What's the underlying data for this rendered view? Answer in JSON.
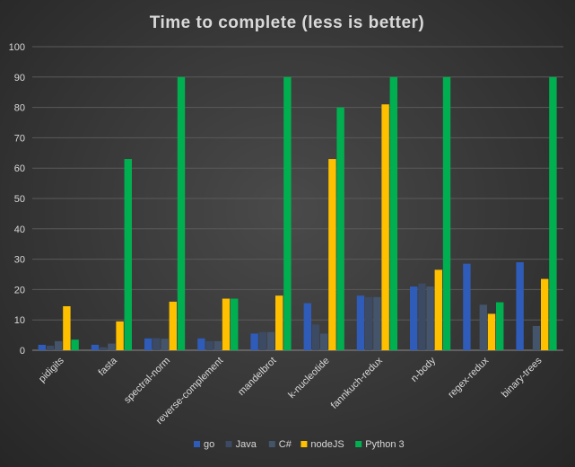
{
  "chart_data": {
    "type": "bar",
    "title": "Time to complete (less is better)",
    "xlabel": "",
    "ylabel": "",
    "ylim": [
      0,
      100
    ],
    "yticks": [
      0,
      10,
      20,
      30,
      40,
      50,
      60,
      70,
      80,
      90,
      100
    ],
    "grid": true,
    "legend_position": "bottom",
    "categories": [
      "pidigits",
      "fasta",
      "spectral-norm",
      "reverse-complement",
      "mandelbrot",
      "k-nucleotide",
      "fannkuch-redux",
      "n-body",
      "regex-redux",
      "binary-trees"
    ],
    "series": [
      {
        "name": "go",
        "color": "#2e5cb8",
        "values": [
          1.8,
          1.8,
          3.9,
          3.9,
          5.5,
          15.5,
          18.0,
          21.0,
          28.5,
          29.0
        ]
      },
      {
        "name": "Java",
        "color": "#3d4a63",
        "values": [
          1.5,
          1.0,
          4.0,
          3.0,
          6.0,
          8.5,
          17.5,
          22.0,
          0,
          0
        ]
      },
      {
        "name": "C#",
        "color": "#44546a",
        "values": [
          3.0,
          2.2,
          3.8,
          3.0,
          6.0,
          5.5,
          17.5,
          21.0,
          15.0,
          8.0
        ]
      },
      {
        "name": "nodeJS",
        "color": "#ffc000",
        "values": [
          14.5,
          9.5,
          16.0,
          17.0,
          18.0,
          63.0,
          81.0,
          26.5,
          12.0,
          23.5
        ]
      },
      {
        "name": "Python 3",
        "color": "#00b050",
        "values": [
          3.5,
          63.0,
          90.0,
          17.0,
          90.0,
          80.0,
          90.0,
          90.0,
          15.8,
          90.0
        ]
      }
    ]
  }
}
